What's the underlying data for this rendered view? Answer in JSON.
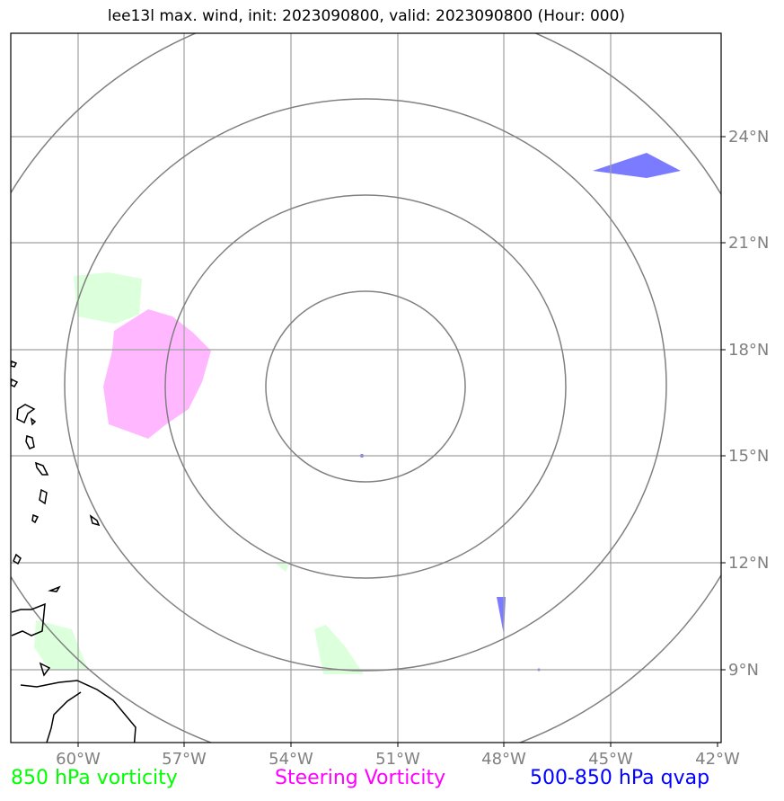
{
  "title": "lee13l max. wind, init: 2023090800, valid: 2023090800 (Hour: 000)",
  "map": {
    "lon_ticks": [
      "60°W",
      "57°W",
      "54°W",
      "51°W",
      "48°W",
      "45°W",
      "42°W"
    ],
    "lat_ticks": [
      "24°N",
      "21°N",
      "18°N",
      "15°N",
      "12°N",
      "9°N"
    ],
    "lon_range": [
      -62,
      -42
    ],
    "lat_range": [
      7,
      27
    ],
    "range_rings_center": {
      "lon": -52,
      "lat": 17
    },
    "grid": true
  },
  "legend": {
    "vort850": {
      "label": "850 hPa vorticity",
      "color": "#00ff00"
    },
    "steering": {
      "label": "Steering Vorticity",
      "color": "#ff00ff"
    },
    "qvap": {
      "label": "500-850 hPa qvap",
      "color": "#0000ff"
    }
  },
  "colors": {
    "vort850_fill": "#dcffdc",
    "steering_fill": "#ffb8ff",
    "qvap_fill": "#7b7bff",
    "ring_stroke": "#808080",
    "grid_stroke": "#a0a0a0",
    "tick_label": "#808080"
  }
}
